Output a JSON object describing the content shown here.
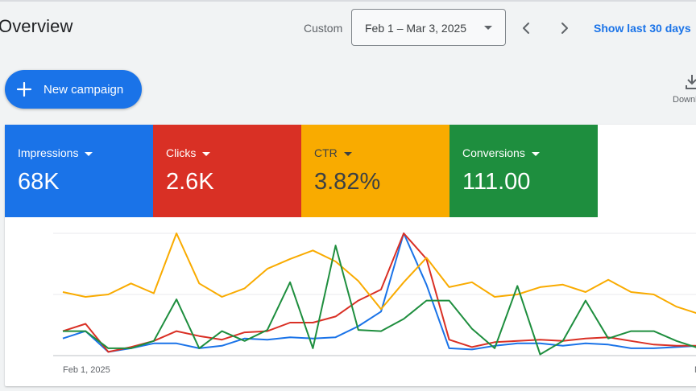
{
  "header": {
    "title": "Overview",
    "custom_label": "Custom",
    "date_range": "Feb 1 – Mar 3, 2025",
    "show_last": "Show last 30 days"
  },
  "toolbar": {
    "new_campaign": "New campaign",
    "download": "Download"
  },
  "metrics": [
    {
      "label": "Impressions",
      "value": "68K",
      "color": "#1a73e8"
    },
    {
      "label": "Clicks",
      "value": "2.6K",
      "color": "#d93025"
    },
    {
      "label": "CTR",
      "value": "3.82%",
      "color": "#f9ab00"
    },
    {
      "label": "Conversions",
      "value": "111.00",
      "color": "#1e8e3e"
    }
  ],
  "chart_data": {
    "type": "line",
    "x_start_label": "Feb 1, 2025",
    "x_end_label": "M",
    "grid": true,
    "series": [
      {
        "name": "Impressions",
        "color": "#1a73e8",
        "values": [
          14,
          20,
          3,
          6,
          10,
          10,
          6,
          8,
          14,
          13,
          15,
          14,
          15,
          24,
          36,
          100,
          58,
          6,
          5,
          8,
          10,
          10,
          8,
          10,
          9,
          6,
          6,
          7,
          8
        ]
      },
      {
        "name": "Clicks",
        "color": "#d93025",
        "values": [
          20,
          26,
          3,
          7,
          12,
          20,
          16,
          13,
          19,
          20,
          27,
          27,
          32,
          45,
          54,
          100,
          79,
          13,
          7,
          11,
          12,
          13,
          12,
          14,
          15,
          12,
          9,
          8,
          8
        ]
      },
      {
        "name": "CTR",
        "color": "#f9ab00",
        "values": [
          52,
          48,
          50,
          59,
          51,
          100,
          59,
          48,
          55,
          71,
          79,
          86,
          77,
          61,
          38,
          60,
          80,
          56,
          60,
          48,
          50,
          56,
          58,
          52,
          62,
          52,
          50,
          40,
          34
        ]
      },
      {
        "name": "Conversions",
        "color": "#1e8e3e",
        "values": [
          20,
          20,
          6,
          6,
          12,
          46,
          6,
          20,
          12,
          21,
          60,
          6,
          90,
          21,
          20,
          30,
          45,
          45,
          22,
          6,
          57,
          1,
          12,
          45,
          14,
          20,
          20,
          12,
          6
        ]
      }
    ]
  }
}
